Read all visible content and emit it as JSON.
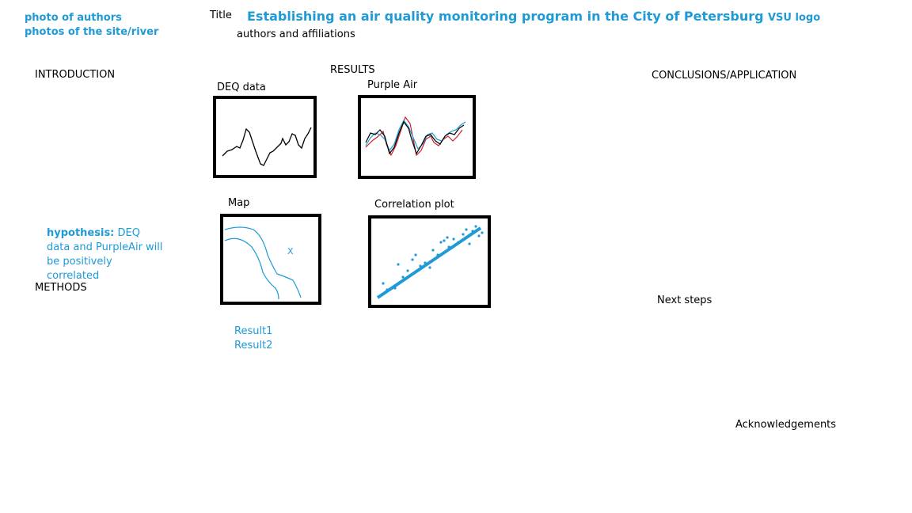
{
  "header": {
    "photo_authors": "photo of authors",
    "photo_site": "photos of the site/river",
    "title_label": "Title",
    "title": "Establishing an air quality monitoring program  in the City of Petersburg",
    "authors": "authors and affiliations",
    "logo": "VSU logo"
  },
  "sections": {
    "introduction": "INTRODUCTION",
    "results": "RESULTS",
    "conclusions": "CONCLUSIONS/APPLICATION",
    "methods": "METHODS",
    "next_steps": "Next steps",
    "acknowledgements": "Acknowledgements"
  },
  "hypothesis": {
    "label": "hypothesis:",
    "text": " DEQ data and PurpleAir will be positively correlated"
  },
  "figures": {
    "deq": "DEQ data",
    "purple": "Purple Air",
    "map": "Map",
    "map_marker": "X",
    "correlation": "Correlation plot"
  },
  "results_list": [
    "Result1",
    "Result2"
  ],
  "colors": {
    "accent": "#1e9ad6",
    "line_black": "#000000",
    "line_red": "#d0202a",
    "line_blue": "#1e9ad6"
  }
}
